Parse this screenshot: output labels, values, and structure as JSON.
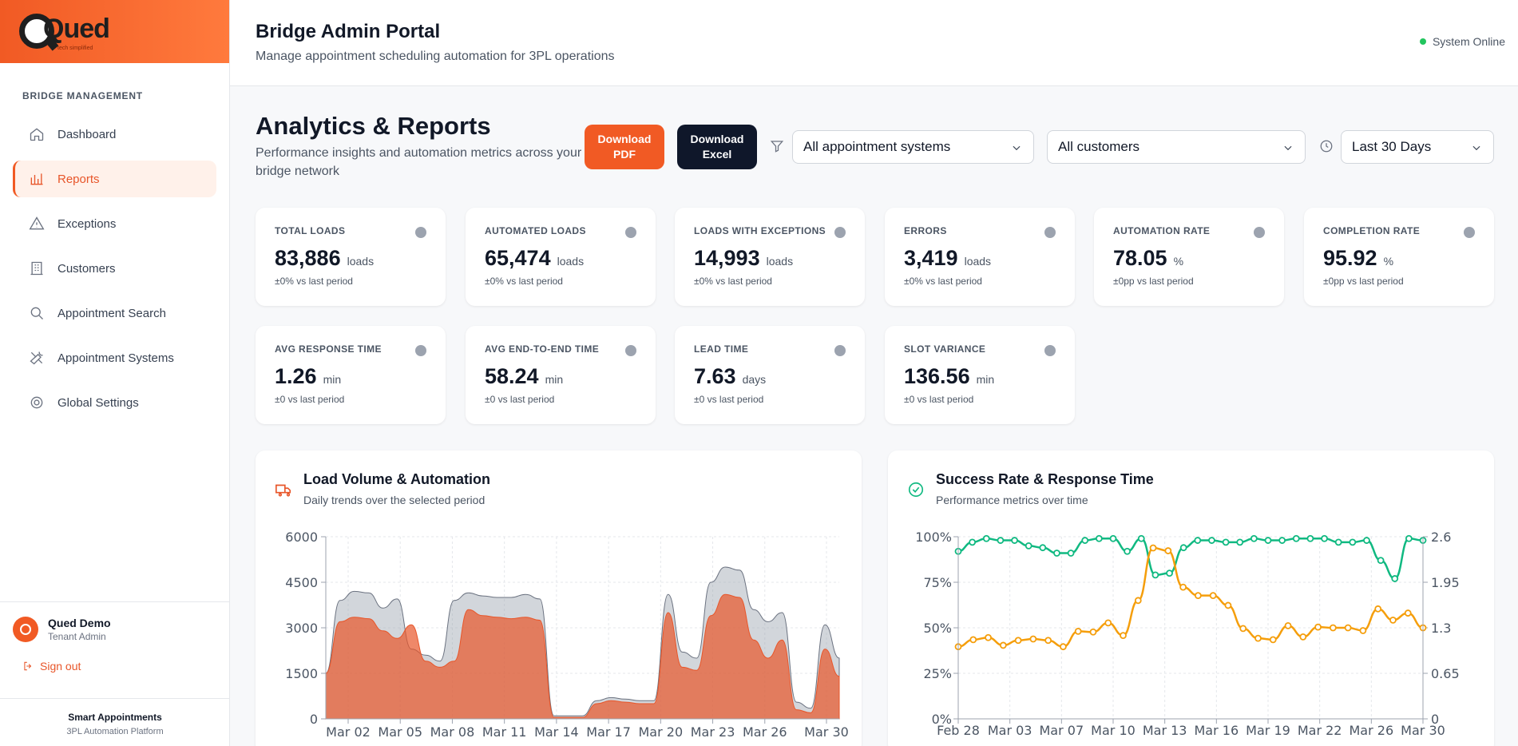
{
  "brand": {
    "name": "Qued",
    "tagline": "tech simplified"
  },
  "sidebar": {
    "section": "BRIDGE MANAGEMENT",
    "items": [
      {
        "label": "Dashboard",
        "icon": "home-icon"
      },
      {
        "label": "Reports",
        "icon": "bar-chart-icon"
      },
      {
        "label": "Exceptions",
        "icon": "warning-icon"
      },
      {
        "label": "Customers",
        "icon": "building-icon"
      },
      {
        "label": "Appointment Search",
        "icon": "search-icon"
      },
      {
        "label": "Appointment Systems",
        "icon": "tools-icon"
      },
      {
        "label": "Global Settings",
        "icon": "gear-icon"
      }
    ],
    "active": "Reports",
    "user": {
      "name": "Qued Demo",
      "role": "Tenant Admin"
    },
    "signout": "Sign out",
    "footer": {
      "line1": "Smart Appointments",
      "line2": "3PL Automation Platform"
    }
  },
  "header": {
    "title": "Bridge Admin Portal",
    "subtitle": "Manage appointment scheduling automation for 3PL operations",
    "status": "System Online",
    "status_color": "#22c55e"
  },
  "page": {
    "title": "Analytics & Reports",
    "subtitle": "Performance insights and automation metrics across your bridge network",
    "download_pdf": "Download PDF",
    "download_excel": "Download Excel",
    "filters": {
      "system": "All appointment systems",
      "customer": "All customers",
      "range": "Last 30 Days"
    }
  },
  "kpis": [
    {
      "label": "TOTAL LOADS",
      "value": "83,886",
      "unit": "loads",
      "delta": "±0% vs last period"
    },
    {
      "label": "AUTOMATED LOADS",
      "value": "65,474",
      "unit": "loads",
      "delta": "±0% vs last period"
    },
    {
      "label": "LOADS WITH EXCEPTIONS",
      "value": "14,993",
      "unit": "loads",
      "delta": "±0% vs last period"
    },
    {
      "label": "ERRORS",
      "value": "3,419",
      "unit": "loads",
      "delta": "±0% vs last period"
    },
    {
      "label": "AUTOMATION RATE",
      "value": "78.05",
      "unit": "%",
      "delta": "±0pp vs last period"
    },
    {
      "label": "COMPLETION RATE",
      "value": "95.92",
      "unit": "%",
      "delta": "±0pp vs last period"
    },
    {
      "label": "AVG RESPONSE TIME",
      "value": "1.26",
      "unit": "min",
      "delta": "±0 vs last period"
    },
    {
      "label": "AVG END-TO-END TIME",
      "value": "58.24",
      "unit": "min",
      "delta": "±0 vs last period"
    },
    {
      "label": "LEAD TIME",
      "value": "7.63",
      "unit": "days",
      "delta": "±0 vs last period"
    },
    {
      "label": "SLOT VARIANCE",
      "value": "136.56",
      "unit": "min",
      "delta": "±0 vs last period"
    }
  ],
  "panels": {
    "left": {
      "title": "Load Volume & Automation",
      "subtitle": "Daily trends over the selected period"
    },
    "right": {
      "title": "Success Rate & Response Time",
      "subtitle": "Performance metrics over time"
    }
  },
  "chart_data": [
    {
      "type": "area",
      "title": "Load Volume & Automation",
      "x_ticks": [
        "Mar 02",
        "Mar 05",
        "Mar 08",
        "Mar 11",
        "Mar 14",
        "Mar 17",
        "Mar 20",
        "Mar 23",
        "Mar 26",
        "Mar 30"
      ],
      "y_ticks": [
        "6000",
        "4500",
        "3000",
        "1500",
        "0"
      ],
      "ylim": [
        0,
        6000
      ],
      "grid": true,
      "series": [
        {
          "color": "#9ca3af",
          "values": [
            1500,
            3900,
            4200,
            4150,
            3650,
            3950,
            2300,
            2100,
            1900,
            3900,
            4150,
            4050,
            4000,
            4000,
            4100,
            3950,
            100,
            100,
            100,
            600,
            700,
            650,
            600,
            600,
            4100,
            2200,
            2000,
            4500,
            5000,
            4900,
            3600,
            3200,
            3500,
            550,
            350,
            3100,
            2000
          ]
        },
        {
          "color": "#e8562a",
          "values": [
            1500,
            3200,
            3350,
            3300,
            2900,
            2650,
            3100,
            1900,
            1700,
            1900,
            3600,
            3400,
            3350,
            3300,
            3350,
            3250,
            50,
            50,
            50,
            500,
            600,
            550,
            500,
            500,
            3500,
            1700,
            1600,
            3400,
            4100,
            4000,
            2600,
            2000,
            2600,
            300,
            200,
            2300,
            1400
          ]
        }
      ]
    },
    {
      "type": "line",
      "title": "Success Rate & Response Time",
      "x_ticks": [
        "Feb 28",
        "Mar 03",
        "Mar 07",
        "Mar 10",
        "Mar 13",
        "Mar 16",
        "Mar 19",
        "Mar 22",
        "Mar 26",
        "Mar 30"
      ],
      "y_ticks_left": [
        "100%",
        "75%",
        "50%",
        "25%",
        "0%"
      ],
      "y_ticks_right": [
        "2.6",
        "1.95",
        "1.3",
        "0.65",
        "0"
      ],
      "ylim_left": [
        0,
        100
      ],
      "ylim_right": [
        0,
        2.6
      ],
      "grid": true,
      "series": [
        {
          "color": "#10b981",
          "axis": "left",
          "values": [
            92,
            97,
            99,
            98,
            98,
            95,
            94,
            91,
            91,
            98,
            99,
            99,
            92,
            99,
            79,
            80,
            94,
            98,
            98,
            97,
            97,
            99,
            98,
            98,
            99,
            99,
            99,
            97,
            97,
            98,
            87,
            77,
            99,
            98
          ]
        },
        {
          "color": "#f59e0b",
          "axis": "right",
          "values": [
            1.03,
            1.13,
            1.16,
            1.05,
            1.12,
            1.14,
            1.12,
            1.03,
            1.25,
            1.24,
            1.37,
            1.19,
            1.69,
            2.44,
            2.4,
            1.88,
            1.76,
            1.76,
            1.62,
            1.29,
            1.15,
            1.13,
            1.33,
            1.17,
            1.31,
            1.3,
            1.3,
            1.26,
            1.57,
            1.41,
            1.51,
            1.3
          ]
        }
      ]
    }
  ]
}
